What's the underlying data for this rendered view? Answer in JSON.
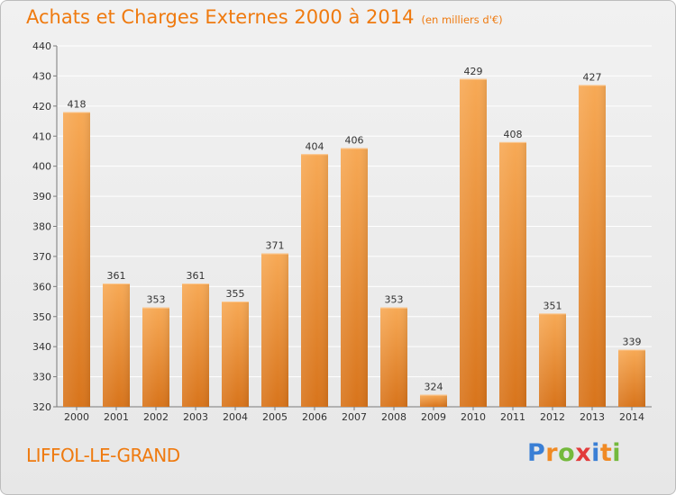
{
  "title": "Achats et Charges Externes 2000 à 2014",
  "subtitle": "(en milliers d'€)",
  "commune": "LIFFOL-LE-GRAND",
  "brand": {
    "text": "Proxiti",
    "letter_colors": [
      "#3a7fd5",
      "#f08a24",
      "#74b93c",
      "#e23b3b",
      "#3a7fd5",
      "#f08a24",
      "#74b93c"
    ]
  },
  "colors": {
    "accent": "#ef7a0f",
    "bar_light": "#f7a955",
    "bar_dark": "#d8741b",
    "grid": "#ffffff",
    "axis_text": "#333333"
  },
  "chart_data": {
    "type": "bar",
    "title": "Achats et Charges Externes 2000 à 2014",
    "subtitle": "(en milliers d'€)",
    "xlabel": "",
    "ylabel": "",
    "categories": [
      "2000",
      "2001",
      "2002",
      "2003",
      "2004",
      "2005",
      "2006",
      "2007",
      "2008",
      "2009",
      "2010",
      "2011",
      "2012",
      "2013",
      "2014"
    ],
    "values": [
      418,
      361,
      353,
      361,
      355,
      371,
      404,
      406,
      353,
      324,
      429,
      408,
      351,
      427,
      339
    ],
    "ylim": [
      320,
      440
    ],
    "yticks": [
      320,
      330,
      340,
      350,
      360,
      370,
      380,
      390,
      400,
      410,
      420,
      430,
      440
    ],
    "grid": true,
    "legend": "none"
  }
}
